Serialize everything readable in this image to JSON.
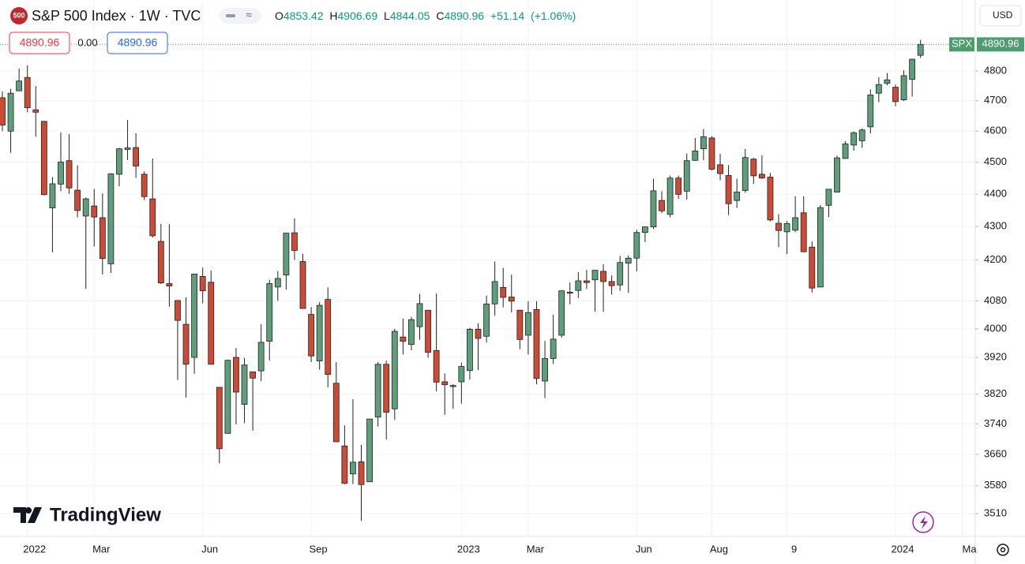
{
  "header": {
    "logo": "500",
    "title": "S&P 500 Index · 1W · TVC",
    "o_label": "O",
    "h_label": "H",
    "l_label": "L",
    "c_label": "C",
    "change": "+51.14",
    "change_pct": "(+1.06%)",
    "spread": "0.00",
    "currency": "USD",
    "symbol": "SPX"
  },
  "branding": "TradingView",
  "chart_data": {
    "type": "candlestick",
    "open": [
      4710,
      4600,
      4733,
      4778,
      4670,
      4632,
      4357,
      4431,
      4505,
      4412,
      4332,
      4363,
      4327,
      4188,
      4462,
      4541,
      4547,
      4462,
      4385,
      4255,
      4130,
      4081,
      4013,
      3920,
      4151,
      4134,
      3838,
      3715,
      3920,
      3792,
      3880,
      3883,
      3965,
      4120,
      4155,
      4281,
      4195,
      4041,
      3910,
      4084,
      3849,
      3682,
      3610,
      3641,
      3590,
      3758,
      3901,
      3780,
      3977,
      3956,
      4006,
      4053,
      3939,
      3853,
      3843,
      3853,
      3884,
      3999,
      3979,
      4071,
      4119,
      4091,
      4053,
      3982,
      4055,
      3855,
      3917,
      3982,
      4102,
      4110,
      4138,
      4141,
      4166,
      4136,
      4126,
      4190,
      4205,
      4282,
      4299,
      4380,
      4337,
      4450,
      4409,
      4506,
      4543,
      4578,
      4492,
      4458,
      4380,
      4411,
      4510,
      4462,
      4453,
      4310,
      4284,
      4289,
      4342,
      4238,
      4120,
      4365,
      4406,
      4512,
      4555,
      4569,
      4614,
      4725,
      4758,
      4745,
      4703,
      4772,
      4853.42
    ],
    "high": [
      4731,
      4740,
      4808,
      4819,
      4749,
      4632,
      4453,
      4596,
      4590,
      4490,
      4389,
      4416,
      4402,
      4465,
      4546,
      4637,
      4593,
      4471,
      4512,
      4308,
      4307,
      4082,
      4090,
      4158,
      4177,
      4168,
      3838,
      3914,
      3946,
      3918,
      3880,
      4013,
      4141,
      4167,
      4280,
      4325,
      4218,
      4062,
      4076,
      4119,
      3907,
      3736,
      3806,
      3685,
      3753,
      3907,
      3911,
      4000,
      4029,
      4034,
      4100,
      4053,
      4101,
      3876,
      3846,
      3906,
      4003,
      4015,
      4095,
      4195,
      4176,
      4156,
      4053,
      4079,
      4079,
      3966,
      4040,
      4110,
      4133,
      4164,
      4170,
      4170,
      4187,
      4154,
      4212,
      4213,
      4290,
      4299,
      4448,
      4409,
      4458,
      4458,
      4528,
      4578,
      4607,
      4584,
      4527,
      4491,
      4448,
      4542,
      4514,
      4522,
      4466,
      4338,
      4317,
      4393,
      4393,
      4255,
      4366,
      4415,
      4521,
      4568,
      4599,
      4609,
      4738,
      4779,
      4793,
      4754,
      4802,
      4842,
      4906.69
    ],
    "low": [
      4600,
      4530,
      4733,
      4662,
      4582,
      4396,
      4222,
      4409,
      4401,
      4328,
      4115,
      4240,
      4157,
      4161,
      4424,
      4507,
      4450,
      4381,
      4267,
      4129,
      4063,
      3858,
      3810,
      3875,
      4073,
      3900,
      3637,
      3715,
      3739,
      3742,
      3722,
      3855,
      3911,
      4080,
      4112,
      4200,
      4057,
      3907,
      3886,
      3838,
      3693,
      3584,
      3584,
      3492,
      3590,
      3733,
      3699,
      3751,
      3928,
      3940,
      3969,
      3919,
      3827,
      3764,
      3780,
      3794,
      3859,
      3885,
      3962,
      4037,
      4061,
      4047,
      3943,
      3928,
      3846,
      3809,
      3902,
      3975,
      4070,
      4088,
      4114,
      4049,
      4048,
      4098,
      4109,
      4103,
      4166,
      4253,
      4293,
      4341,
      4328,
      4385,
      4383,
      4504,
      4507,
      4474,
      4443,
      4335,
      4357,
      4404,
      4431,
      4447,
      4316,
      4238,
      4217,
      4283,
      4223,
      4104,
      4120,
      4329,
      4406,
      4511,
      4537,
      4546,
      4593,
      4695,
      4751,
      4682,
      4699,
      4714,
      4844.05
    ],
    "close": [
      4620,
      4725,
      4766,
      4677,
      4662,
      4398,
      4432,
      4501,
      4419,
      4349,
      4385,
      4329,
      4204,
      4463,
      4543,
      4546,
      4488,
      4392,
      4272,
      4132,
      4123,
      4024,
      3901,
      4158,
      4109,
      3901,
      3675,
      3912,
      3825,
      3899,
      3863,
      3962,
      4130,
      4145,
      4280,
      4228,
      4058,
      3924,
      4067,
      3873,
      3693,
      3586,
      3640,
      3583,
      3753,
      3901,
      3771,
      3993,
      3965,
      4026,
      4072,
      3934,
      3852,
      3845,
      3840,
      3895,
      3999,
      3973,
      4071,
      4136,
      4090,
      4079,
      3970,
      4046,
      3862,
      3917,
      3971,
      4109,
      4105,
      4138,
      4133,
      4169,
      4136,
      4124,
      4192,
      4205,
      4282,
      4299,
      4410,
      4348,
      4450,
      4399,
      4505,
      4536,
      4582,
      4478,
      4464,
      4370,
      4406,
      4515,
      4457,
      4450,
      4320,
      4288,
      4309,
      4327,
      4224,
      4117,
      4358,
      4415,
      4514,
      4559,
      4595,
      4604,
      4719,
      4754,
      4770,
      4697,
      4784,
      4840,
      4890.96
    ],
    "up_color": "#5e9e7b",
    "down_color": "#cc4b37",
    "last_color": "#4f9c6e",
    "ylim": [
      3454,
      5047
    ],
    "log": true,
    "yticks": [
      3510,
      3580,
      3660,
      3740,
      3820,
      3920,
      4000,
      4080,
      4200,
      4300,
      4400,
      4500,
      4600,
      4700,
      4800
    ],
    "xticks": [
      {
        "value": 3,
        "label": "2022"
      },
      {
        "value": 11,
        "label": "Mar"
      },
      {
        "value": 24,
        "label": "Jun"
      },
      {
        "value": 37,
        "label": "Sep"
      },
      {
        "value": 55,
        "label": "2023"
      },
      {
        "value": 63,
        "label": "Mar"
      },
      {
        "value": 76,
        "label": "Jun"
      },
      {
        "value": 85,
        "label": "Aug"
      },
      {
        "value": 94,
        "label": "9"
      },
      {
        "value": 107,
        "label": "2024"
      },
      {
        "value": 115,
        "label": "Ma"
      }
    ],
    "grid": true
  }
}
